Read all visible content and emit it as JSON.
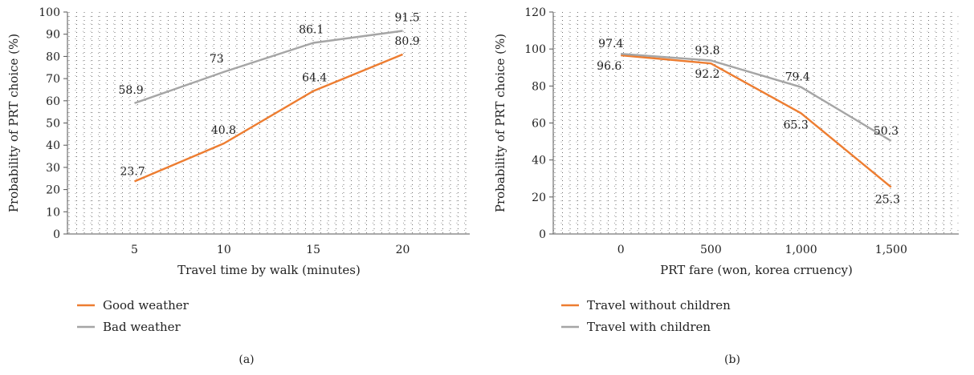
{
  "chart_data": [
    {
      "type": "line",
      "panel_label": "(a)",
      "xlabel": "Travel time by walk (minutes)",
      "ylabel": "Probability of PRT choice (%)",
      "categories": [
        "5",
        "10",
        "15",
        "20"
      ],
      "ylim": [
        0,
        100
      ],
      "yticks": [
        "0",
        "10",
        "20",
        "30",
        "40",
        "50",
        "60",
        "70",
        "80",
        "90",
        "100"
      ],
      "grid": true,
      "legend_position": "bottom-left",
      "series": [
        {
          "name": "Good weather",
          "color": "#ED7D31",
          "values": [
            23.7,
            40.8,
            64.4,
            80.9
          ],
          "labels": [
            "23.7",
            "40.8",
            "64.4",
            "80.9"
          ]
        },
        {
          "name": "Bad weather",
          "color": "#A5A5A5",
          "values": [
            58.9,
            73,
            86.1,
            91.5
          ],
          "labels": [
            "58.9",
            "73",
            "86.1",
            "91.5"
          ]
        }
      ]
    },
    {
      "type": "line",
      "panel_label": "(b)",
      "xlabel": "PRT fare (won, korea crruency)",
      "ylabel": "Probability of PRT choice (%)",
      "categories": [
        "0",
        "500",
        "1,000",
        "1,500"
      ],
      "ylim": [
        0,
        120
      ],
      "yticks": [
        "0",
        "20",
        "40",
        "60",
        "80",
        "100",
        "120"
      ],
      "grid": true,
      "legend_position": "bottom-left",
      "series": [
        {
          "name": "Travel without children",
          "color": "#ED7D31",
          "values": [
            96.6,
            92.2,
            65.3,
            25.3
          ],
          "labels": [
            "96.6",
            "92.2",
            "65.3",
            "25.3"
          ]
        },
        {
          "name": "Travel with children",
          "color": "#A5A5A5",
          "values": [
            97.4,
            93.8,
            79.4,
            50.3
          ],
          "labels": [
            "97.4",
            "93.8",
            "79.4",
            "50.3"
          ]
        }
      ]
    }
  ]
}
